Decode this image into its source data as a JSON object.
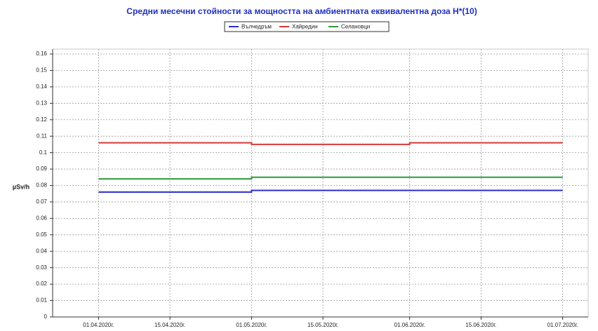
{
  "chart_data": {
    "type": "line",
    "step": "post",
    "title": "Средни месечни стойности за мощността на амбиентната еквивалентна доза H*(10)",
    "y_label": "µSv/h",
    "x": [
      "2020-04-01",
      "2020-05-01",
      "2020-06-01",
      "2020-07-01"
    ],
    "series": [
      {
        "name": "Вълчедръм",
        "color": "#2b2bd6",
        "values": [
          0.076,
          0.077,
          0.077,
          0.077
        ]
      },
      {
        "name": "Хайредин",
        "color": "#d63a3a",
        "values": [
          0.106,
          0.105,
          0.106,
          0.106
        ]
      },
      {
        "name": "Селановци",
        "color": "#2f9a35",
        "values": [
          0.084,
          0.085,
          0.085,
          0.085
        ]
      }
    ],
    "xlim": [
      "2020-03-23",
      "2020-07-06"
    ],
    "xticks": [
      {
        "value": "2020-04-01",
        "label": "01.04.2020г."
      },
      {
        "value": "2020-04-15",
        "label": "15.04.2020г."
      },
      {
        "value": "2020-05-01",
        "label": "01.05.2020г."
      },
      {
        "value": "2020-05-15",
        "label": "15.05.2020г."
      },
      {
        "value": "2020-06-01",
        "label": "01.06.2020г."
      },
      {
        "value": "2020-06-15",
        "label": "15.06.2020г."
      },
      {
        "value": "2020-07-01",
        "label": "01.07.2020г."
      }
    ],
    "ylim": [
      0,
      0.163
    ],
    "yticks": [
      0,
      0.01,
      0.02,
      0.03,
      0.04,
      0.05,
      0.06,
      0.07,
      0.08,
      0.09,
      0.1,
      0.11,
      0.12,
      0.13,
      0.14,
      0.15,
      0.16
    ],
    "grid": true,
    "legend": "top"
  }
}
